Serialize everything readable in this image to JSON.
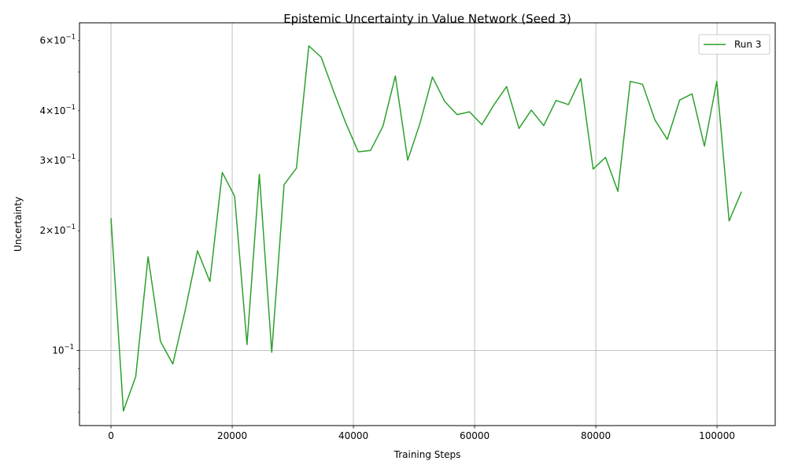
{
  "chart_data": {
    "type": "line",
    "title": "Epistemic Uncertainty in Value Network (Seed 3)",
    "xlabel": "Training Steps",
    "ylabel": "Uncertainty",
    "xlim": [
      -5200,
      109600
    ],
    "ylim": [
      0.0648,
      0.665
    ],
    "yscale": "log",
    "grid": true,
    "legend_position": "upper-right",
    "x_ticks": [
      {
        "value": 0,
        "label": "0"
      },
      {
        "value": 20000,
        "label": "20000"
      },
      {
        "value": 40000,
        "label": "40000"
      },
      {
        "value": 60000,
        "label": "60000"
      },
      {
        "value": 80000,
        "label": "80000"
      },
      {
        "value": 100000,
        "label": "100000"
      }
    ],
    "y_major_ticks": [
      {
        "value": 0.1,
        "base": "10",
        "exp": "−1"
      }
    ],
    "y_minor_ticks": [
      {
        "value": 0.2,
        "mant": "2",
        "base": "10",
        "exp": "−1"
      },
      {
        "value": 0.3,
        "mant": "3",
        "base": "10",
        "exp": "−1"
      },
      {
        "value": 0.4,
        "mant": "4",
        "base": "10",
        "exp": "−1"
      },
      {
        "value": 0.6,
        "mant": "6",
        "base": "10",
        "exp": "−1"
      }
    ],
    "y_unlabeled_minor_ticks": [
      0.07,
      0.08,
      0.09,
      0.5
    ],
    "series": [
      {
        "name": "Run 3",
        "color": "#2ca02c",
        "x": [
          0,
          2040,
          4080,
          6120,
          8160,
          10200,
          12240,
          14280,
          16320,
          18360,
          20400,
          22440,
          24480,
          26520,
          28560,
          30600,
          32640,
          34680,
          36720,
          38760,
          40800,
          42840,
          44880,
          46920,
          48960,
          51000,
          53040,
          55080,
          57120,
          59160,
          61200,
          63240,
          65280,
          67320,
          69360,
          71400,
          73440,
          75480,
          77520,
          79560,
          81600,
          83640,
          85680,
          87720,
          89760,
          91800,
          93840,
          95880,
          97920,
          99960,
          102000,
          104040
        ],
        "y": [
          0.215,
          0.0705,
          0.086,
          0.172,
          0.1055,
          0.0925,
          0.126,
          0.178,
          0.149,
          0.28,
          0.244,
          0.1035,
          0.277,
          0.099,
          0.261,
          0.287,
          0.582,
          0.545,
          0.448,
          0.372,
          0.3155,
          0.318,
          0.366,
          0.489,
          0.3005,
          0.3725,
          0.486,
          0.422,
          0.391,
          0.3975,
          0.369,
          0.415,
          0.46,
          0.361,
          0.4015,
          0.367,
          0.4245,
          0.4145,
          0.482,
          0.2855,
          0.3055,
          0.251,
          0.474,
          0.466,
          0.379,
          0.339,
          0.4255,
          0.441,
          0.326,
          0.474,
          0.2115,
          0.2505
        ]
      }
    ]
  }
}
